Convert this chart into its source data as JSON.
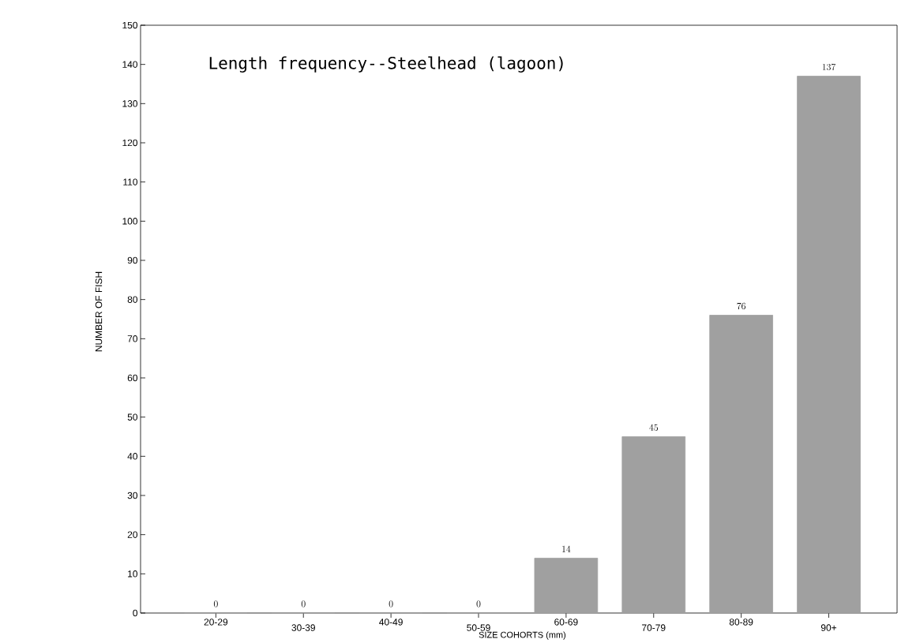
{
  "chart_data": {
    "type": "bar",
    "title": "Length frequency--Steelhead (lagoon)",
    "xlabel": "SIZE COHORTS (mm)",
    "ylabel": "NUMBER OF FISH",
    "categories": [
      "20-29",
      "30-39",
      "40-49",
      "50-59",
      "60-69",
      "70-79",
      "80-89",
      "90+"
    ],
    "values": [
      0,
      0,
      0,
      0,
      14,
      45,
      76,
      137
    ],
    "color": "#a0a0a0",
    "ylim": [
      0,
      150
    ],
    "yticks": [
      0,
      10,
      20,
      30,
      40,
      50,
      60,
      70,
      80,
      90,
      100,
      110,
      120,
      130,
      140,
      150
    ],
    "data_labels": true,
    "grid": false
  }
}
